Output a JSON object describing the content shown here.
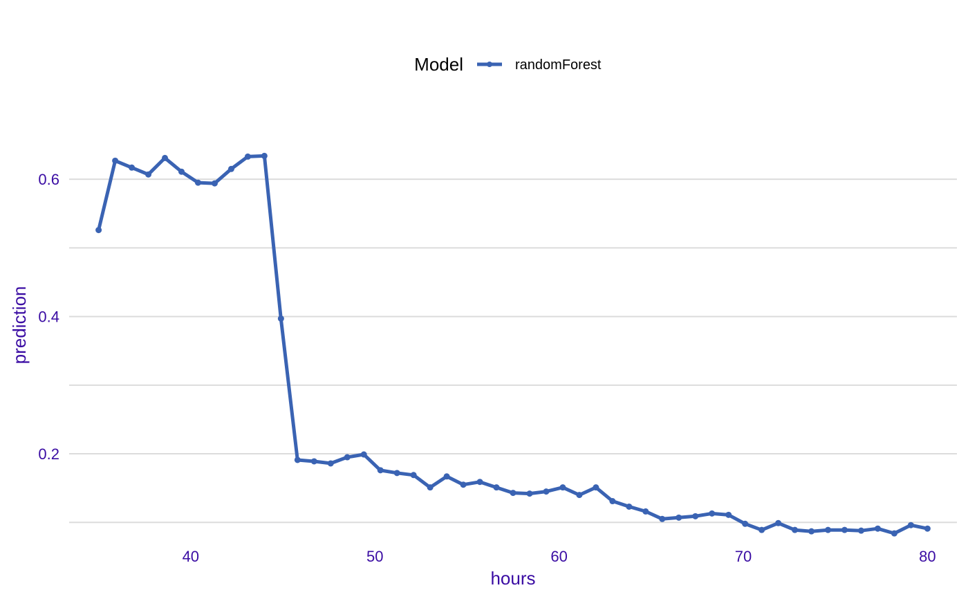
{
  "chart_data": {
    "type": "line",
    "xlabel": "hours",
    "ylabel": "prediction",
    "xlim": [
      33.4,
      81.6
    ],
    "ylim": [
      0.065,
      0.71
    ],
    "x_ticks": [
      40,
      50,
      60,
      70,
      80
    ],
    "x_tick_labels": [
      "40",
      "50",
      "60",
      "70",
      "80"
    ],
    "y_ticks": [
      0.2,
      0.4,
      0.6
    ],
    "y_tick_labels": [
      "0.2",
      "0.4",
      "0.6"
    ],
    "y_minor_gridlines": [
      0.1,
      0.3,
      0.5
    ],
    "grid": true,
    "legend": {
      "title": "Model",
      "position": "top"
    },
    "series": [
      {
        "name": "randomForest",
        "color": "#3a63b3",
        "x": [
          35.0,
          35.9,
          36.8,
          37.7,
          38.6,
          39.5,
          40.4,
          41.3,
          42.2,
          43.1,
          44.0,
          44.9,
          45.8,
          46.7,
          47.6,
          48.5,
          49.4,
          50.3,
          51.2,
          52.1,
          53.0,
          53.9,
          54.8,
          55.7,
          56.6,
          57.5,
          58.4,
          59.3,
          60.2,
          61.1,
          62.0,
          62.9,
          63.8,
          64.7,
          65.6,
          66.5,
          67.4,
          68.3,
          69.2,
          70.1,
          71.0,
          71.9,
          72.8,
          73.7,
          74.6,
          75.5,
          76.4,
          77.3,
          78.2,
          79.1,
          80.0
        ],
        "values": [
          0.526,
          0.627,
          0.617,
          0.607,
          0.631,
          0.611,
          0.595,
          0.594,
          0.615,
          0.633,
          0.634,
          0.397,
          0.191,
          0.189,
          0.186,
          0.195,
          0.199,
          0.176,
          0.172,
          0.169,
          0.151,
          0.167,
          0.155,
          0.159,
          0.151,
          0.143,
          0.142,
          0.145,
          0.151,
          0.14,
          0.151,
          0.131,
          0.123,
          0.116,
          0.105,
          0.107,
          0.109,
          0.113,
          0.111,
          0.098,
          0.089,
          0.099,
          0.089,
          0.087,
          0.089,
          0.089,
          0.088,
          0.091,
          0.084,
          0.096,
          0.091
        ]
      }
    ]
  }
}
